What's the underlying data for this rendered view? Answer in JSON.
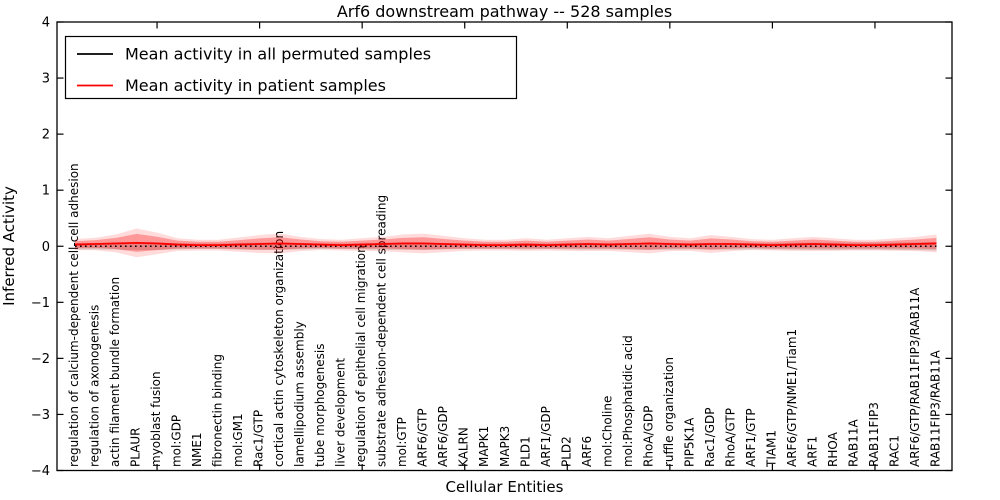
{
  "figure": {
    "background": "#ffffff",
    "frame_color": "#000000"
  },
  "chart_data": {
    "type": "line",
    "title": "Arf6 downstream pathway -- 528 samples",
    "xlabel": "Cellular Entities",
    "ylabel": "Inferred Activity",
    "ylim": [
      -4,
      4
    ],
    "yticks": [
      4,
      3,
      2,
      1,
      0,
      -1,
      -2,
      -3,
      -4
    ],
    "xtick_indices": [
      4,
      9,
      14,
      19,
      24,
      29,
      34,
      39
    ],
    "grid": false,
    "legend_position": "upper left",
    "categories": [
      "regulation of calcium-dependent cell-cell adhesion",
      "regulation of axonogenesis",
      "actin filament bundle formation",
      "PLAUR",
      "myoblast fusion",
      "mol:GDP",
      "NME1",
      "fibronectin binding",
      "mol:GM1",
      "Rac1/GTP",
      "cortical actin cytoskeleton organization",
      "lamellipodium assembly",
      "tube morphogenesis",
      "liver development",
      "regulation of epithelial cell migration",
      "substrate adhesion-dependent cell spreading",
      "mol:GTP",
      "ARF6/GTP",
      "ARF6/GDP",
      "KALRN",
      "MAPK1",
      "MAPK3",
      "PLD1",
      "ARF1/GDP",
      "PLD2",
      "ARF6",
      "mol:Choline",
      "mol:Phosphatidic acid",
      "RhoA/GDP",
      "ruffle organization",
      "PIP5K1A",
      "Rac1/GDP",
      "RhoA/GTP",
      "ARF1/GTP",
      "TIAM1",
      "ARF6/GTP/NME1/Tiam1",
      "ARF1",
      "RHOA",
      "RAB11A",
      "RAB11FIP3",
      "RAC1",
      "ARF6/GTP/RAB11FIP3/RAB11A",
      "RAB11FIP3/RAB11A"
    ],
    "series": [
      {
        "name": "Mean activity in all permuted samples",
        "color": "#000000",
        "line_style": "dotted",
        "band_color": "rgba(0,0,0,0.16)",
        "values": [
          0,
          0,
          0,
          0,
          0,
          0,
          0,
          0,
          0,
          0,
          0,
          0,
          0,
          0,
          0,
          0,
          0,
          0,
          0,
          0,
          0,
          0,
          0,
          0,
          0,
          0,
          0,
          0,
          0,
          0,
          0,
          0,
          0,
          0,
          0,
          0,
          0,
          0,
          0,
          0,
          0,
          0,
          0
        ],
        "band": [
          0.055,
          0.055,
          0.06,
          0.07,
          0.065,
          0.055,
          0.05,
          0.05,
          0.06,
          0.065,
          0.065,
          0.055,
          0.05,
          0.05,
          0.055,
          0.06,
          0.065,
          0.065,
          0.055,
          0.05,
          0.05,
          0.05,
          0.055,
          0.05,
          0.055,
          0.06,
          0.055,
          0.06,
          0.065,
          0.06,
          0.055,
          0.06,
          0.06,
          0.055,
          0.055,
          0.06,
          0.065,
          0.065,
          0.06,
          0.06,
          0.065,
          0.07,
          0.075
        ]
      },
      {
        "name": "Mean activity in patient samples",
        "color": "#ff0000",
        "line_style": "solid",
        "band_color": "rgba(255,0,0,0.30)",
        "band_outer_color": "rgba(255,0,0,0.14)",
        "values": [
          0.03,
          0.04,
          0.05,
          0.06,
          0.05,
          0.03,
          0.02,
          0.02,
          0.03,
          0.04,
          0.05,
          0.04,
          0.03,
          0.02,
          0.03,
          0.04,
          0.05,
          0.05,
          0.04,
          0.03,
          0.02,
          0.02,
          0.03,
          0.02,
          0.03,
          0.04,
          0.03,
          0.04,
          0.05,
          0.04,
          0.03,
          0.04,
          0.04,
          0.03,
          0.02,
          0.03,
          0.04,
          0.03,
          0.02,
          0.02,
          0.03,
          0.04,
          0.05
        ],
        "band": [
          0.06,
          0.07,
          0.1,
          0.16,
          0.12,
          0.07,
          0.06,
          0.06,
          0.08,
          0.1,
          0.11,
          0.08,
          0.06,
          0.06,
          0.07,
          0.08,
          0.1,
          0.11,
          0.09,
          0.07,
          0.06,
          0.06,
          0.07,
          0.06,
          0.07,
          0.08,
          0.07,
          0.09,
          0.11,
          0.08,
          0.07,
          0.1,
          0.08,
          0.06,
          0.06,
          0.07,
          0.08,
          0.07,
          0.06,
          0.06,
          0.07,
          0.08,
          0.1
        ]
      }
    ]
  }
}
